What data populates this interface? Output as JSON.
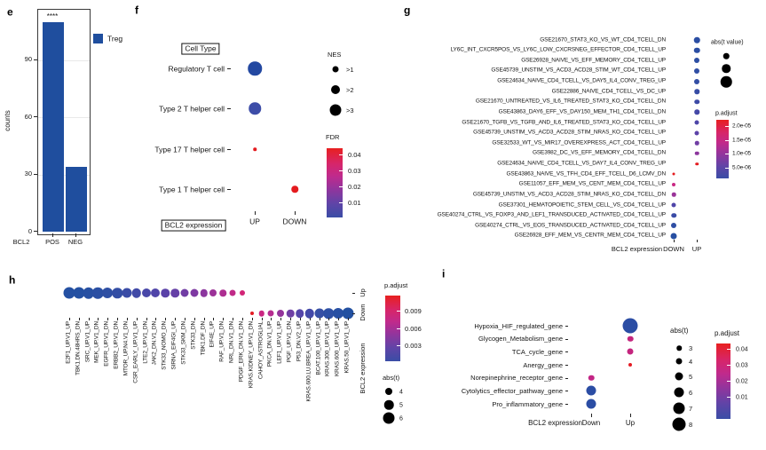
{
  "chart_data": [
    {
      "panel": "e",
      "type": "bar",
      "ylabel": "counts",
      "xlabel": "BCL2",
      "categories": [
        "POS",
        "NEG"
      ],
      "values": [
        110,
        34
      ],
      "yticks": [
        0,
        30,
        60,
        90
      ],
      "ylim": [
        0,
        117
      ],
      "annotation": "****",
      "bar_color": "#1f4e9e",
      "grid": "major-y",
      "legend": {
        "items": [
          {
            "label": "Treg",
            "color": "#1f4e9e"
          }
        ]
      }
    },
    {
      "panel": "f",
      "type": "dot",
      "y_axis_title": "Cell Type",
      "x_axis_title": "BCL2 expression",
      "cols": [
        "UP",
        "DOWN"
      ],
      "rows": [
        {
          "label": "Regulatory T cell"
        },
        {
          "label": "Type 2 T helper cell"
        },
        {
          "label": "Type 17 T helper cell"
        },
        {
          "label": "Type 1 T helper cell"
        }
      ],
      "dots": [
        {
          "row": 0,
          "col": "UP",
          "size": 15.5,
          "color": "#2348a1"
        },
        {
          "row": 1,
          "col": "UP",
          "size": 13.5,
          "color": "#3d4da8"
        },
        {
          "row": 2,
          "col": "UP",
          "size": 3.5,
          "color": "#e41b1f"
        },
        {
          "row": 3,
          "col": "DOWN",
          "size": 7.5,
          "color": "#e41b1f"
        }
      ],
      "size_legend": {
        "title": "NES",
        "values": [
          ">1",
          ">2",
          ">3"
        ],
        "sizes": [
          7,
          10,
          13
        ]
      },
      "color_legend": {
        "title": "FDR",
        "values": [
          "0.04",
          "0.03",
          "0.02",
          "0.01"
        ]
      }
    },
    {
      "panel": "g",
      "type": "dot",
      "x_axis_title": "BCL2 expression",
      "cols": [
        "DOWN",
        "UP"
      ],
      "rows": [
        {
          "label": "GSE21670_STAT3_KO_VS_WT_CD4_TCELL_DN",
          "col": "UP",
          "size": 6.5,
          "color": "#2b4ea3"
        },
        {
          "label": "LY6C_INT_CXCR5POS_VS_LY6C_LOW_CXCRSNEG_EFFECTOR_CD4_TCELL_UP",
          "col": "UP",
          "size": 6.5,
          "color": "#2b4ea3"
        },
        {
          "label": "GSE26928_NAIVE_VS_EFF_MEMORY_CD4_TCELL_UP",
          "col": "UP",
          "size": 6,
          "color": "#2d4ea3"
        },
        {
          "label": "GSE45739_UNSTIM_VS_ACD3_ACD28_STIM_WT_CD4_TCELL_UP",
          "col": "UP",
          "size": 6,
          "color": "#304ea4"
        },
        {
          "label": "GSE24634_NAIVE_CD4_TCELL_VS_DAY5_IL4_CONV_TREG_UP",
          "col": "UP",
          "size": 6,
          "color": "#334da4"
        },
        {
          "label": "GSE22886_NAIVE_CD4_TCELL_VS_DC_UP",
          "col": "UP",
          "size": 5.5,
          "color": "#374ca5"
        },
        {
          "label": "GSE21670_UNTREATED_VS_IL6_TREATED_STAT3_KO_CD4_TCELL_DN",
          "col": "UP",
          "size": 5.5,
          "color": "#3d4aa6"
        },
        {
          "label": "GSE43863_DAY6_EFF_VS_DAY150_MEM_TH1_CD4_TCELL_DN",
          "col": "UP",
          "size": 5.5,
          "color": "#4448a7"
        },
        {
          "label": "GSE21670_TGFB_VS_TGFB_AND_IL6_TREATED_STAT3_KO_CD4_TCELL_UP",
          "col": "UP",
          "size": 5,
          "color": "#4d45a8"
        },
        {
          "label": "GSE45739_UNSTIM_VS_ACD3_ACD28_STIM_NRAS_KO_CD4_TCELL_UP",
          "col": "UP",
          "size": 5,
          "color": "#5c42a8"
        },
        {
          "label": "GSE32533_WT_VS_MIR17_OVEREXPRESS_ACT_CD4_TCELL_UP",
          "col": "UP",
          "size": 4.5,
          "color": "#703ea4"
        },
        {
          "label": "GSE3982_DC_VS_EFF_MEMORY_CD4_TCELL_DN",
          "col": "UP",
          "size": 4.5,
          "color": "#8c369d"
        },
        {
          "label": "GSE24634_NAIVE_CD4_TCELL_VS_DAY7_IL4_CONV_TREG_UP",
          "col": "UP",
          "size": 3.5,
          "color": "#e41b1f"
        },
        {
          "label": "GSE43863_NAIVE_VS_TFH_CD4_EFF_TCELL_D6_LCMV_DN",
          "col": "DOWN",
          "size": 3,
          "color": "#e41b1f"
        },
        {
          "label": "GSE11057_EFF_MEM_VS_CENT_MEM_CD4_TCELL_UP",
          "col": "DOWN",
          "size": 4,
          "color": "#c92884"
        },
        {
          "label": "GSE45739_UNSTIM_VS_ACD3_ACD28_STIM_NRAS_KO_CD4_TCELL_DN",
          "col": "DOWN",
          "size": 4.5,
          "color": "#9a3399"
        },
        {
          "label": "GSE37301_HEMATOPOIETIC_STEM_CELL_VS_CD4_TCELL_UP",
          "col": "DOWN",
          "size": 5,
          "color": "#4f45a9"
        },
        {
          "label": "GSE40274_CTRL_VS_FOXP3_AND_LEF1_TRANSDUCED_ACTIVATED_CD4_TCELL_UP",
          "col": "DOWN",
          "size": 5.5,
          "color": "#3a4ba6"
        },
        {
          "label": "GSE40274_CTRL_VS_EOS_TRANSDUCED_ACTIVATED_CD4_TCELL_UP",
          "col": "DOWN",
          "size": 6,
          "color": "#2f4ea4"
        },
        {
          "label": "GSE26928_EFF_MEM_VS_CENTR_MEM_CD4_TCELL_UP",
          "col": "DOWN",
          "size": 7,
          "color": "#274fa2"
        }
      ],
      "size_legend": {
        "title": "abs(t value)",
        "values": [
          "",
          "",
          ""
        ],
        "sizes": [
          6.5,
          9.5,
          12.5
        ]
      },
      "color_legend": {
        "title": "p.adjust",
        "values": [
          "2.0e-05",
          "1.5e-05",
          "1.0e-05",
          "5.0e-06"
        ]
      }
    },
    {
      "panel": "h",
      "type": "dot",
      "y_axis_title": "BCL2 expression",
      "rows": [
        {
          "label": "Up"
        },
        {
          "label": "Down"
        }
      ],
      "categories": [
        {
          "label": "E2F1_UP.V1_UP",
          "row": "Up",
          "size": 13,
          "color": "#2450a2"
        },
        {
          "label": "TBK1.DN.48HRS_DN",
          "row": "Up",
          "size": 13,
          "color": "#2450a2"
        },
        {
          "label": "SRC_UP.V1_UP",
          "row": "Up",
          "size": 12.5,
          "color": "#2750a2"
        },
        {
          "label": "MEK_UP.V1_DN",
          "row": "Up",
          "size": 12.5,
          "color": "#2a4fa3"
        },
        {
          "label": "EGFR_UP.V1_DN",
          "row": "Up",
          "size": 12,
          "color": "#2e4fa3"
        },
        {
          "label": "ERBB2_UP.V1_DN",
          "row": "Up",
          "size": 11.5,
          "color": "#334ea4"
        },
        {
          "label": "MTOR_UP.N4.V1_DN",
          "row": "Up",
          "size": 11,
          "color": "#3a4ca6"
        },
        {
          "label": "CSR_EARLY_UP.V1_UP",
          "row": "Up",
          "size": 10.5,
          "color": "#414aa7"
        },
        {
          "label": "LTE2_UP.V1_DN",
          "row": "Up",
          "size": 10,
          "color": "#4847a8"
        },
        {
          "label": "JAK2_DN.V1_DN",
          "row": "Up",
          "size": 10,
          "color": "#5045a9"
        },
        {
          "label": "STK33_NOMO_DN",
          "row": "Up",
          "size": 9.5,
          "color": "#5a42a8"
        },
        {
          "label": "SIRNA_EIF4GI_UP",
          "row": "Up",
          "size": 9.5,
          "color": "#6540a6"
        },
        {
          "label": "STK33_SKM_DN",
          "row": "Up",
          "size": 9,
          "color": "#713da4"
        },
        {
          "label": "STK33_DN",
          "row": "Up",
          "size": 9,
          "color": "#7e39a2"
        },
        {
          "label": "TBK1.DF_DN",
          "row": "Up",
          "size": 8.5,
          "color": "#8c369e"
        },
        {
          "label": "EIF4E_UP",
          "row": "Up",
          "size": 8,
          "color": "#9c3298"
        },
        {
          "label": "RAF_UP.V1_DN",
          "row": "Up",
          "size": 7.5,
          "color": "#ad2e91"
        },
        {
          "label": "NRL_DN.V1_DN",
          "row": "Up",
          "size": 7,
          "color": "#c02a87"
        },
        {
          "label": "PDGF_ERK_DN.V1_DN",
          "row": "Up",
          "size": 6,
          "color": "#d22577"
        },
        {
          "label": "KRAS.KIDNEY_UP.V1_DN",
          "row": "Down",
          "size": 4,
          "color": "#e41c24"
        },
        {
          "label": "CAHOY_ASTROGLIAL",
          "row": "Down",
          "size": 6.5,
          "color": "#cb2783"
        },
        {
          "label": "PKCA_DN.V1_UP",
          "row": "Down",
          "size": 7,
          "color": "#b52d90"
        },
        {
          "label": "LEF1_UP.V1_UP",
          "row": "Down",
          "size": 8,
          "color": "#93349b"
        },
        {
          "label": "PGF_UP.V1_DN",
          "row": "Down",
          "size": 8.5,
          "color": "#6f40a5"
        },
        {
          "label": "P53_DN.V2_UP",
          "row": "Down",
          "size": 9.5,
          "color": "#5546a9"
        },
        {
          "label": "KRAS.600.LU.BREA_UP.V1_UP",
          "row": "Down",
          "size": 10.5,
          "color": "#4349a8"
        },
        {
          "label": "BCAT.100_UP.V1_UP",
          "row": "Down",
          "size": 11,
          "color": "#3750a5"
        },
        {
          "label": "KRAS.300_UP.V1_UP",
          "row": "Down",
          "size": 11.5,
          "color": "#2e50a4"
        },
        {
          "label": "KRAS.600_UP.V1_UP",
          "row": "Down",
          "size": 12,
          "color": "#2850a3"
        },
        {
          "label": "KRAS.50_UP.V1_UP",
          "row": "Down",
          "size": 13,
          "color": "#2250a1"
        }
      ],
      "size_legend": {
        "title": "abs(t)",
        "values": [
          "4",
          "5",
          "6"
        ],
        "sizes": [
          8,
          10.5,
          13
        ]
      },
      "color_legend": {
        "title": "p.adjust",
        "values": [
          "0.009",
          "0.006",
          "0.003"
        ]
      }
    },
    {
      "panel": "i",
      "type": "dot",
      "x_axis_title": "BCL2 expression",
      "cols": [
        "Down",
        "Up"
      ],
      "rows": [
        {
          "label": "Hypoxia_HIF_regulated_gene",
          "col": "Up",
          "size": 17,
          "color": "#2b4da4"
        },
        {
          "label": "Glycogen_Metabolism_gene",
          "col": "Up",
          "size": 6.5,
          "color": "#c4257e"
        },
        {
          "label": "TCA_cycle_gene",
          "col": "Up",
          "size": 7,
          "color": "#c4257e"
        },
        {
          "label": "Anergy_gene",
          "col": "Up",
          "size": 4,
          "color": "#e41c24"
        },
        {
          "label": "Norepinephrine_receptor_gene",
          "col": "Down",
          "size": 6.5,
          "color": "#c32585"
        },
        {
          "label": "Cytolytics_effector_pathway_gene",
          "col": "Down",
          "size": 11,
          "color": "#2b4da4"
        },
        {
          "label": "Pro_inflammatory_gene",
          "col": "Down",
          "size": 11,
          "color": "#2b4da4"
        }
      ],
      "size_legend": {
        "title": "abs(t)",
        "values": [
          "3",
          "4",
          "5",
          "6",
          "7",
          "8"
        ],
        "sizes": [
          5.5,
          7,
          9,
          11,
          13,
          15
        ]
      },
      "color_legend": {
        "title": "p.adjust",
        "values": [
          "0.04",
          "0.03",
          "0.02",
          "0.01"
        ]
      }
    }
  ]
}
